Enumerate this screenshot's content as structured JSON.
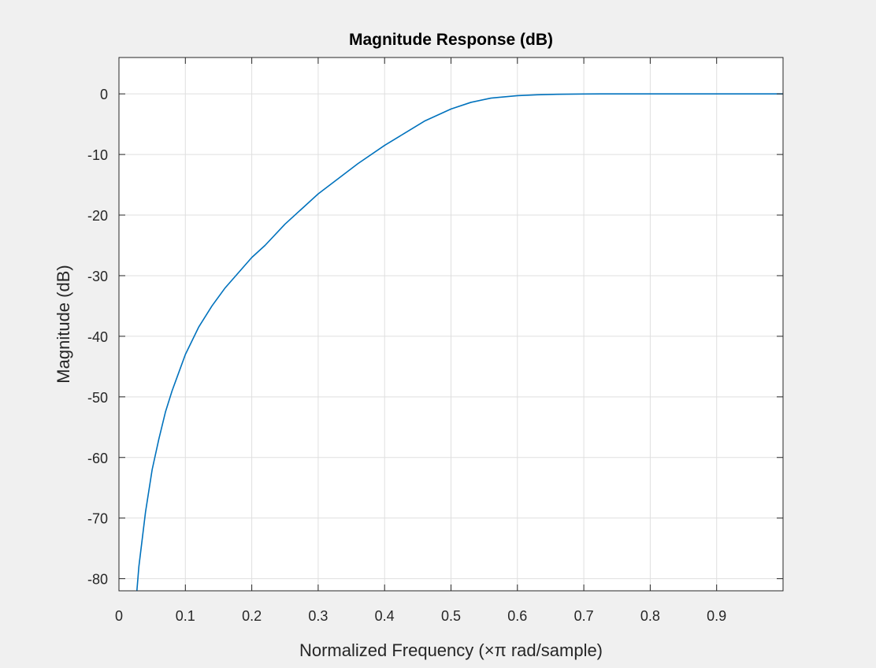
{
  "chart_data": {
    "type": "line",
    "title": "Magnitude Response (dB)",
    "xlabel": "Normalized Frequency (×π rad/sample)",
    "ylabel": "Magnitude (dB)",
    "xlim": [
      0,
      1
    ],
    "ylim": [
      -82,
      6
    ],
    "xticks": [
      0,
      0.1,
      0.2,
      0.3,
      0.4,
      0.5,
      0.6,
      0.7,
      0.8,
      0.9
    ],
    "xtick_labels": [
      "0",
      "0.1",
      "0.2",
      "0.3",
      "0.4",
      "0.5",
      "0.6",
      "0.7",
      "0.8",
      "0.9"
    ],
    "yticks": [
      0,
      -10,
      -20,
      -30,
      -40,
      -50,
      -60,
      -70,
      -80
    ],
    "ytick_labels": [
      "0",
      "-10",
      "-20",
      "-30",
      "-40",
      "-50",
      "-60",
      "-70",
      "-80"
    ],
    "grid": true,
    "series": [
      {
        "color": "#0072bd",
        "x": [
          0.027,
          0.03,
          0.04,
          0.05,
          0.06,
          0.07,
          0.08,
          0.09,
          0.1,
          0.12,
          0.14,
          0.16,
          0.18,
          0.2,
          0.22,
          0.25,
          0.28,
          0.3,
          0.33,
          0.36,
          0.4,
          0.43,
          0.46,
          0.5,
          0.53,
          0.56,
          0.6,
          0.63,
          0.66,
          0.7,
          0.75,
          0.8,
          0.85,
          0.9,
          0.95,
          1.0
        ],
        "y": [
          -82,
          -78,
          -69,
          -62,
          -57,
          -52.5,
          -49,
          -46,
          -43,
          -38.5,
          -35,
          -32,
          -29.5,
          -27,
          -25,
          -21.5,
          -18.5,
          -16.5,
          -14,
          -11.5,
          -8.5,
          -6.5,
          -4.5,
          -2.5,
          -1.4,
          -0.7,
          -0.3,
          -0.15,
          -0.07,
          -0.02,
          0,
          0,
          0,
          0,
          0,
          0
        ]
      }
    ]
  }
}
